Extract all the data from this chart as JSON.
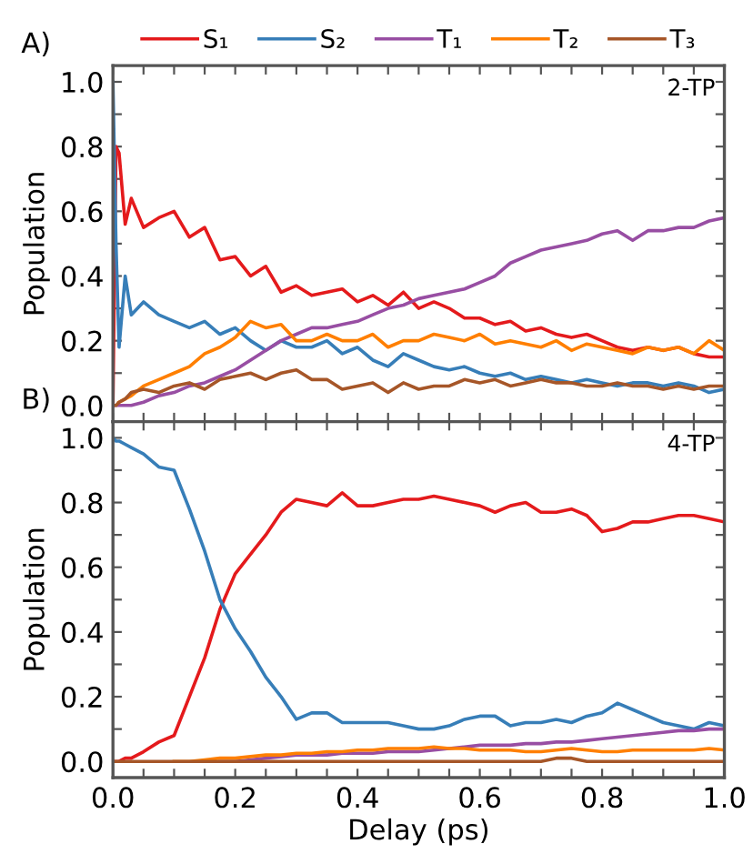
{
  "chart_data": [
    {
      "type": "line",
      "annotations": [
        "A)",
        "2-TP"
      ],
      "ylabel": "Population",
      "legend": "top",
      "tick_labels": "y",
      "xlim": [
        0,
        1.0
      ],
      "ylim": [
        -0.05,
        1.05
      ],
      "xticks": [
        0,
        {
          "value": 0.05,
          "label": null
        },
        0.2,
        {
          "value": 0.1,
          "label": null
        },
        {
          "value": 0.15,
          "label": null
        },
        {
          "value": 0.25,
          "label": null
        },
        {
          "value": 0.3,
          "label": null
        },
        {
          "value": 0.35,
          "label": null
        },
        0.4,
        {
          "value": 0.45,
          "label": null
        },
        {
          "value": 0.5,
          "label": null
        },
        {
          "value": 0.55,
          "label": null
        },
        0.6,
        {
          "value": 0.65,
          "label": null
        },
        {
          "value": 0.7,
          "label": null
        },
        {
          "value": 0.75,
          "label": null
        },
        0.8,
        {
          "value": 0.85,
          "label": null
        },
        {
          "value": 0.9,
          "label": null
        },
        {
          "value": 0.95,
          "label": null
        },
        1
      ],
      "yticks": [
        {
          "value": 0,
          "label": "0.0"
        },
        {
          "value": 0.1,
          "label": null
        },
        0.2,
        {
          "value": 0.3,
          "label": null
        },
        0.4,
        {
          "value": 0.5,
          "label": null
        },
        0.6,
        {
          "value": 0.7,
          "label": null
        },
        0.8,
        {
          "value": 0.9,
          "label": null
        },
        {
          "value": 1,
          "label": "1.0"
        }
      ],
      "x": [
        0,
        0.005,
        0.01,
        0.02,
        0.03,
        0.05,
        0.075,
        0.1,
        0.125,
        0.15,
        0.175,
        0.2,
        0.225,
        0.25,
        0.275,
        0.3,
        0.325,
        0.35,
        0.375,
        0.4,
        0.425,
        0.45,
        0.475,
        0.5,
        0.525,
        0.55,
        0.575,
        0.6,
        0.625,
        0.65,
        0.675,
        0.7,
        0.725,
        0.75,
        0.775,
        0.8,
        0.825,
        0.85,
        0.875,
        0.9,
        0.925,
        0.95,
        0.975,
        1.0
      ],
      "series": [
        {
          "name": "S₁",
          "color": "#e41a1c",
          "values": [
            0.0,
            0.8,
            0.78,
            0.56,
            0.64,
            0.55,
            0.58,
            0.6,
            0.52,
            0.55,
            0.45,
            0.46,
            0.4,
            0.43,
            0.35,
            0.37,
            0.34,
            0.35,
            0.36,
            0.32,
            0.34,
            0.31,
            0.35,
            0.3,
            0.32,
            0.3,
            0.27,
            0.27,
            0.25,
            0.26,
            0.23,
            0.24,
            0.22,
            0.21,
            0.22,
            0.2,
            0.18,
            0.17,
            0.18,
            0.17,
            0.18,
            0.16,
            0.15,
            0.15
          ]
        },
        {
          "name": "S₂",
          "color": "#377eb8",
          "values": [
            1.0,
            0.5,
            0.18,
            0.4,
            0.28,
            0.32,
            0.28,
            0.26,
            0.24,
            0.26,
            0.22,
            0.24,
            0.2,
            0.17,
            0.2,
            0.18,
            0.18,
            0.2,
            0.16,
            0.18,
            0.14,
            0.12,
            0.16,
            0.14,
            0.12,
            0.11,
            0.12,
            0.1,
            0.09,
            0.1,
            0.08,
            0.09,
            0.08,
            0.07,
            0.08,
            0.07,
            0.06,
            0.07,
            0.07,
            0.06,
            0.07,
            0.06,
            0.04,
            0.05
          ]
        },
        {
          "name": "T₁",
          "color": "#984ea3",
          "values": [
            0,
            0,
            0,
            0,
            0,
            0.01,
            0.03,
            0.04,
            0.06,
            0.07,
            0.09,
            0.11,
            0.14,
            0.17,
            0.2,
            0.22,
            0.24,
            0.24,
            0.25,
            0.26,
            0.28,
            0.3,
            0.31,
            0.33,
            0.34,
            0.35,
            0.36,
            0.38,
            0.4,
            0.44,
            0.46,
            0.48,
            0.49,
            0.5,
            0.51,
            0.53,
            0.54,
            0.51,
            0.54,
            0.54,
            0.55,
            0.55,
            0.57,
            0.58
          ]
        },
        {
          "name": "T₂",
          "color": "#ff7f00",
          "values": [
            null,
            null,
            0.01,
            0.02,
            0.03,
            0.06,
            0.08,
            0.1,
            0.12,
            0.16,
            0.18,
            0.21,
            0.26,
            0.24,
            0.25,
            0.2,
            0.2,
            0.22,
            0.2,
            0.2,
            0.22,
            0.18,
            0.2,
            0.2,
            0.22,
            0.21,
            0.2,
            0.22,
            0.19,
            0.2,
            0.19,
            0.18,
            0.2,
            0.17,
            0.19,
            0.18,
            0.17,
            0.16,
            0.18,
            0.17,
            0.18,
            0.16,
            0.2,
            0.17
          ]
        },
        {
          "name": "T₃",
          "color": "#a65628",
          "values": [
            0,
            0,
            0.01,
            0.02,
            0.04,
            0.05,
            0.04,
            0.06,
            0.07,
            0.05,
            0.08,
            0.09,
            0.1,
            0.08,
            0.1,
            0.11,
            0.08,
            0.08,
            0.05,
            0.06,
            0.07,
            0.04,
            0.07,
            0.05,
            0.06,
            0.06,
            0.08,
            0.07,
            0.08,
            0.06,
            0.07,
            0.08,
            0.07,
            0.07,
            0.06,
            0.06,
            0.07,
            0.06,
            0.06,
            0.05,
            0.06,
            0.05,
            0.06,
            0.06
          ]
        }
      ]
    },
    {
      "type": "line",
      "annotations": [
        "B)",
        "4-TP"
      ],
      "ylabel": "Population",
      "xlabel": "Delay (ps)",
      "xlim": [
        0,
        1.0
      ],
      "ylim": [
        -0.05,
        1.05
      ],
      "xticks": [
        {
          "value": 0,
          "label": "0.0"
        },
        {
          "value": 0.05,
          "label": null
        },
        0.2,
        {
          "value": 0.1,
          "label": null
        },
        {
          "value": 0.15,
          "label": null
        },
        {
          "value": 0.25,
          "label": null
        },
        {
          "value": 0.3,
          "label": null
        },
        {
          "value": 0.35,
          "label": null
        },
        0.4,
        {
          "value": 0.45,
          "label": null
        },
        {
          "value": 0.5,
          "label": null
        },
        {
          "value": 0.55,
          "label": null
        },
        0.6,
        {
          "value": 0.65,
          "label": null
        },
        {
          "value": 0.7,
          "label": null
        },
        {
          "value": 0.75,
          "label": null
        },
        0.8,
        {
          "value": 0.85,
          "label": null
        },
        {
          "value": 0.9,
          "label": null
        },
        {
          "value": 0.95,
          "label": null
        },
        {
          "value": 1,
          "label": "1.0"
        }
      ],
      "yticks": [
        {
          "value": 0,
          "label": "0.0"
        },
        {
          "value": 0.1,
          "label": null
        },
        0.2,
        {
          "value": 0.3,
          "label": null
        },
        0.4,
        {
          "value": 0.5,
          "label": null
        },
        0.6,
        {
          "value": 0.7,
          "label": null
        },
        0.8,
        {
          "value": 0.9,
          "label": null
        },
        {
          "value": 1,
          "label": "1.0"
        }
      ],
      "x": [
        0,
        0.005,
        0.01,
        0.02,
        0.03,
        0.05,
        0.075,
        0.1,
        0.125,
        0.15,
        0.175,
        0.2,
        0.225,
        0.25,
        0.275,
        0.3,
        0.325,
        0.35,
        0.375,
        0.4,
        0.425,
        0.45,
        0.475,
        0.5,
        0.525,
        0.55,
        0.575,
        0.6,
        0.625,
        0.65,
        0.675,
        0.7,
        0.725,
        0.75,
        0.775,
        0.8,
        0.825,
        0.85,
        0.875,
        0.9,
        0.925,
        0.95,
        0.975,
        1.0
      ],
      "series": [
        {
          "color": "#e41a1c",
          "values": [
            0,
            0,
            0,
            0.01,
            0.01,
            0.03,
            0.06,
            0.08,
            0.2,
            0.32,
            0.47,
            0.58,
            0.64,
            0.7,
            0.77,
            0.81,
            0.8,
            0.79,
            0.83,
            0.79,
            0.79,
            0.8,
            0.81,
            0.81,
            0.82,
            0.81,
            0.8,
            0.79,
            0.77,
            0.79,
            0.8,
            0.77,
            0.77,
            0.78,
            0.76,
            0.71,
            0.72,
            0.74,
            0.74,
            0.75,
            0.76,
            0.76,
            0.75,
            0.74
          ]
        },
        {
          "color": "#377eb8",
          "values": [
            1.0,
            0.99,
            0.99,
            0.98,
            0.97,
            0.95,
            0.91,
            0.9,
            0.78,
            0.65,
            0.5,
            0.41,
            0.34,
            0.26,
            0.2,
            0.13,
            0.15,
            0.15,
            0.12,
            0.12,
            0.12,
            0.12,
            0.11,
            0.1,
            0.1,
            0.11,
            0.13,
            0.14,
            0.14,
            0.11,
            0.12,
            0.12,
            0.13,
            0.12,
            0.14,
            0.15,
            0.18,
            0.16,
            0.14,
            0.12,
            0.11,
            0.1,
            0.12,
            0.11
          ]
        },
        {
          "color": "#984ea3",
          "values": [
            null,
            null,
            null,
            null,
            null,
            null,
            null,
            null,
            null,
            null,
            0,
            0,
            0.005,
            0.01,
            0.015,
            0.02,
            0.02,
            0.02,
            0.025,
            0.025,
            0.025,
            0.03,
            0.03,
            0.03,
            0.035,
            0.04,
            0.045,
            0.05,
            0.05,
            0.05,
            0.055,
            0.055,
            0.06,
            0.06,
            0.065,
            0.07,
            0.075,
            0.08,
            0.085,
            0.09,
            0.095,
            0.095,
            0.1,
            0.1
          ]
        },
        {
          "color": "#ff7f00",
          "values": [
            null,
            null,
            null,
            null,
            null,
            null,
            null,
            0,
            0,
            0.005,
            0.01,
            0.01,
            0.015,
            0.02,
            0.02,
            0.025,
            0.025,
            0.03,
            0.03,
            0.035,
            0.035,
            0.04,
            0.04,
            0.04,
            0.045,
            0.04,
            0.04,
            0.035,
            0.035,
            0.035,
            0.03,
            0.03,
            0.035,
            0.04,
            0.035,
            0.03,
            0.03,
            0.035,
            0.035,
            0.035,
            0.035,
            0.035,
            0.04,
            0.035
          ]
        },
        {
          "color": "#a65628",
          "values": [
            0,
            0,
            0,
            0,
            0,
            0,
            0,
            0,
            0,
            0,
            0,
            0,
            0,
            0,
            0,
            0,
            0,
            0,
            0,
            0,
            0,
            0,
            0,
            0,
            0,
            0,
            0,
            0,
            0,
            0,
            0,
            0,
            0.01,
            0.01,
            0,
            0,
            0,
            0,
            0,
            0,
            0,
            0,
            0,
            0
          ]
        }
      ]
    }
  ]
}
